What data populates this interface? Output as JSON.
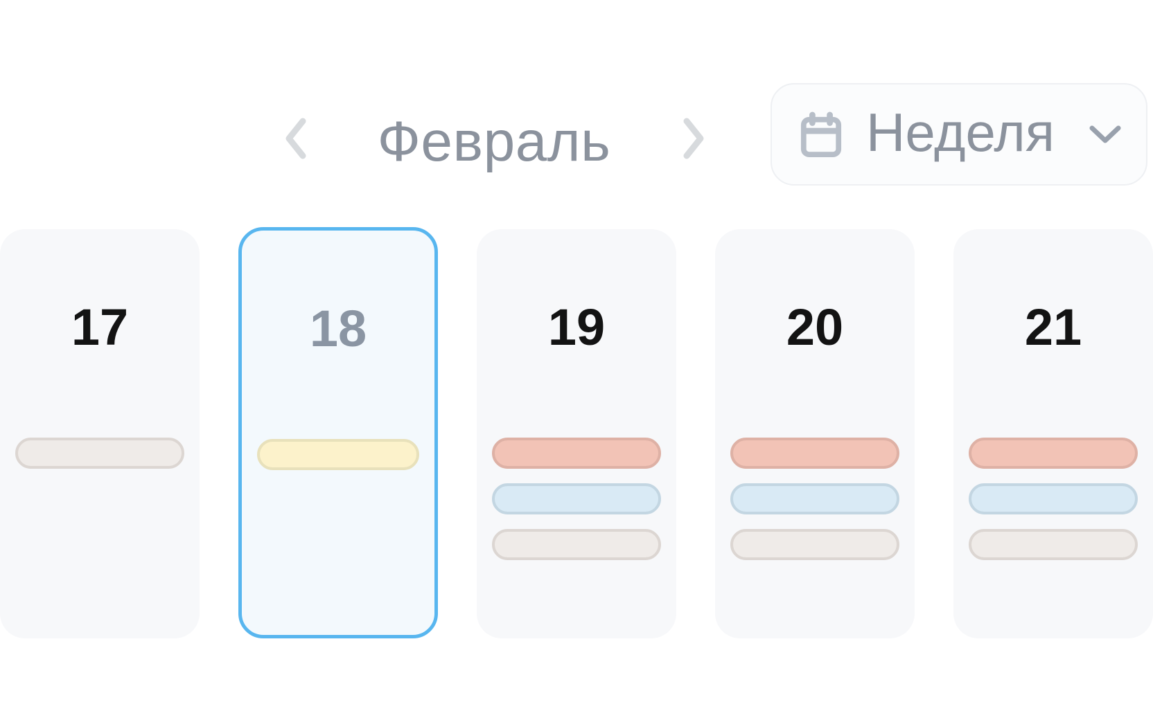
{
  "header": {
    "month": "Февраль",
    "view_button": {
      "label": "Неделя"
    }
  },
  "days": [
    {
      "date": "17",
      "selected": false,
      "events": [
        "gray"
      ]
    },
    {
      "date": "18",
      "selected": true,
      "events": [
        "yellow"
      ]
    },
    {
      "date": "19",
      "selected": false,
      "events": [
        "salmon",
        "blue",
        "gray"
      ]
    },
    {
      "date": "20",
      "selected": false,
      "events": [
        "salmon",
        "blue",
        "gray"
      ]
    },
    {
      "date": "21",
      "selected": false,
      "events": [
        "salmon",
        "blue",
        "gray"
      ]
    }
  ],
  "colors": {
    "accent_selected": "#58b6ef",
    "selected_card_bg": "#f3f9fd",
    "card_bg": "#f7f8fa",
    "month_text": "#8b929d",
    "day_number_text": "#131313",
    "selected_day_number_text": "#8a95a3",
    "nav_chevron": "#d7dadd",
    "calendar_icon": "#b7bec8",
    "dropdown_chevron": "#99a1ad",
    "event_salmon_bg": "#f2c3b6",
    "event_salmon_border": "#deb1a5",
    "event_blue_bg": "#d9eaf5",
    "event_blue_border": "#c3d6e2",
    "event_gray_bg": "#efebe8",
    "event_gray_border": "#dcd6d2",
    "event_yellow_bg": "#fcf2cb",
    "event_yellow_border": "#e8e1bb"
  }
}
